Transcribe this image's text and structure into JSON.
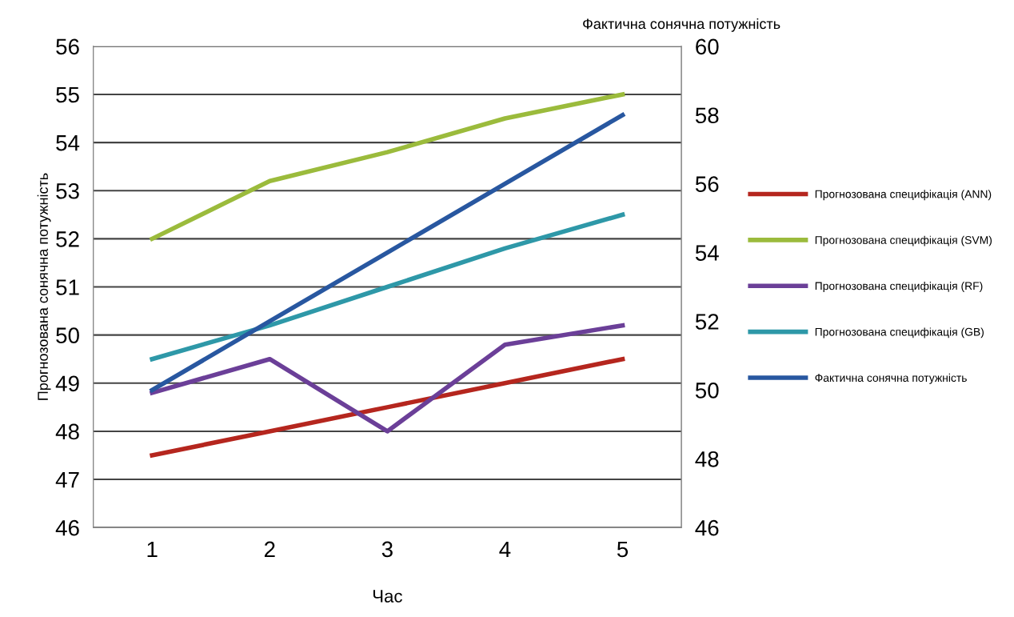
{
  "chart_data": {
    "type": "line",
    "xlabel": "Час",
    "ylabel": "Прогнозована сонячна потужність",
    "y2label": "Фактична сонячна потужність",
    "x": [
      1,
      2,
      3,
      4,
      5
    ],
    "xlim": [
      0.5,
      5.5
    ],
    "xticks": [
      1,
      2,
      3,
      4,
      5
    ],
    "ylim": [
      46,
      56
    ],
    "yticks": [
      46,
      47,
      48,
      49,
      50,
      51,
      52,
      53,
      54,
      55,
      56
    ],
    "y2lim": [
      46,
      60
    ],
    "y2ticks": [
      46,
      48,
      50,
      52,
      54,
      56,
      58,
      60
    ],
    "grid": "y",
    "legend": "right",
    "marker": "none",
    "line_style": "solid",
    "series": [
      {
        "name": "Прогнозована специфікація (ANN)",
        "color": "#b5261e",
        "values": [
          47.5,
          48.0,
          48.5,
          49.0,
          49.5
        ]
      },
      {
        "name": "Прогнозована специфікація (SVM)",
        "color": "#9bbb3c",
        "values": [
          52.0,
          53.2,
          53.8,
          54.5,
          55.0
        ]
      },
      {
        "name": "Прогнозована специфікація (RF)",
        "color": "#6b3f98",
        "values": [
          48.8,
          49.5,
          48.0,
          49.8,
          50.2
        ]
      },
      {
        "name": "Прогнозована специфікація (GB)",
        "color": "#2e98a8",
        "values": [
          49.5,
          50.2,
          51.0,
          51.8,
          52.5
        ]
      },
      {
        "name": "Фактична сонячна потужність",
        "color": "#2857a0",
        "axis": "y2",
        "values": [
          50,
          52,
          54,
          56,
          58
        ]
      }
    ]
  }
}
